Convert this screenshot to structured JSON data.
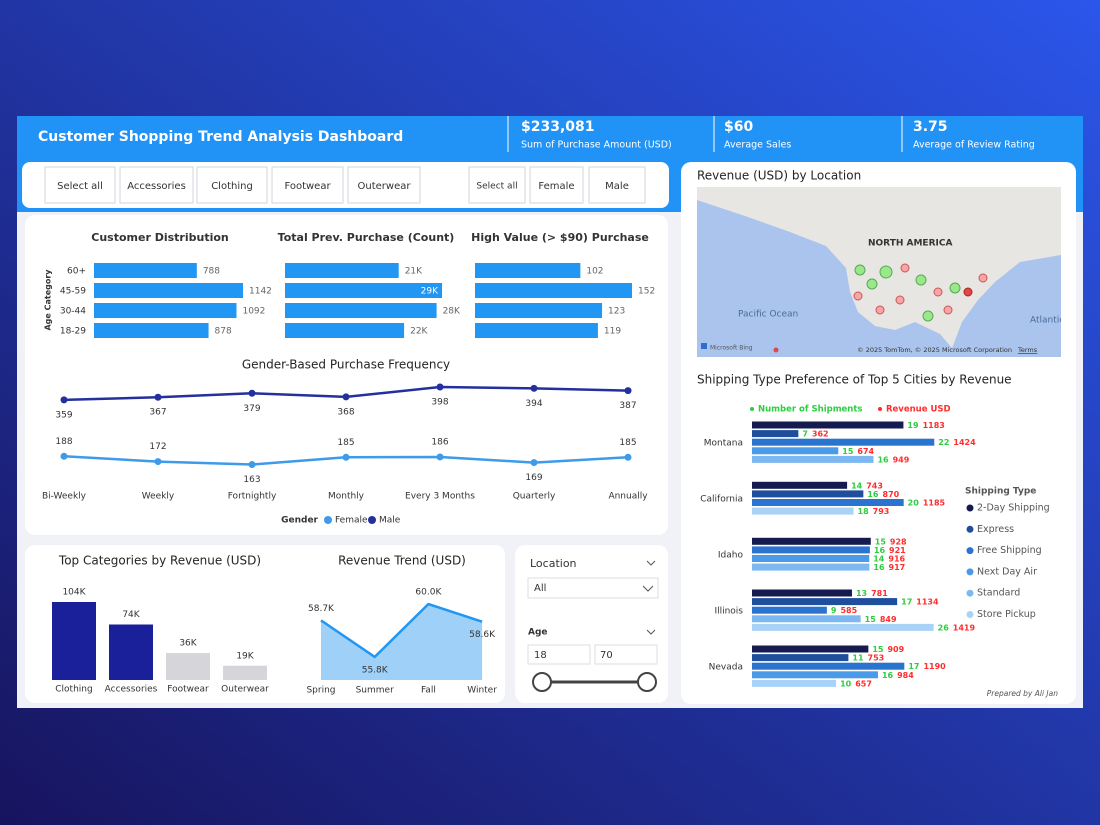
{
  "header": {
    "title": "Customer Shopping Trend Analysis Dashboard"
  },
  "kpis": [
    {
      "value": "$233,081",
      "label": "Sum of Purchase Amount (USD)"
    },
    {
      "value": "$60",
      "label": "Average Sales"
    },
    {
      "value": "3.75",
      "label": "Average of Review Rating"
    }
  ],
  "slicers": {
    "category": [
      "Select all",
      "Accessories",
      "Clothing",
      "Footwear",
      "Outerwear"
    ],
    "gender": [
      "Select all",
      "Female",
      "Male"
    ]
  },
  "customer_distribution": {
    "type": "bar",
    "title": "Customer Distribution",
    "y_label": "Age Category",
    "categories": [
      "60+",
      "45-59",
      "30-44",
      "18-29"
    ],
    "values": [
      788,
      1142,
      1092,
      878
    ],
    "color": "#2196f3"
  },
  "prev_purchase": {
    "type": "bar",
    "title": "Total Prev. Purchase (Count)",
    "values": [
      21000,
      29000,
      28000,
      22000
    ],
    "value_labels": [
      "21K",
      "29K",
      "28K",
      "22K"
    ],
    "color": "#2196f3"
  },
  "high_value": {
    "type": "bar",
    "title": "High Value (> $90) Purchase",
    "values": [
      102,
      152,
      123,
      119
    ],
    "color": "#2196f3"
  },
  "gender_frequency": {
    "type": "line",
    "title": "Gender-Based Purchase Frequency",
    "categories": [
      "Bi-Weekly",
      "Weekly",
      "Fortnightly",
      "Monthly",
      "Every 3 Months",
      "Quarterly",
      "Annually"
    ],
    "legend_title": "Gender",
    "series": [
      {
        "name": "Female",
        "color": "#3d9be9",
        "values": [
          188,
          172,
          163,
          185,
          186,
          169,
          185
        ]
      },
      {
        "name": "Male",
        "color": "#23309e",
        "values": [
          359,
          367,
          379,
          368,
          398,
          394,
          387
        ]
      }
    ]
  },
  "top_categories": {
    "type": "bar",
    "title": "Top Categories by Revenue (USD)",
    "categories": [
      "Clothing",
      "Accessories",
      "Footwear",
      "Outerwear"
    ],
    "values": [
      104000,
      74000,
      36000,
      19000
    ],
    "value_labels": [
      "104K",
      "74K",
      "36K",
      "19K"
    ],
    "colors": [
      "#1a1f9a",
      "#1a1f9a",
      "#d6d6da",
      "#d6d6da"
    ]
  },
  "revenue_trend": {
    "type": "area",
    "title": "Revenue Trend (USD)",
    "categories": [
      "Spring",
      "Summer",
      "Fall",
      "Winter"
    ],
    "values": [
      58700,
      55800,
      60000,
      58600
    ],
    "value_labels": [
      "58.7K",
      "55.8K",
      "60.0K",
      "58.6K"
    ],
    "color": "#2196f3"
  },
  "filters": {
    "location": {
      "label": "Location",
      "selected": "All"
    },
    "age": {
      "label": "Age",
      "min": 18,
      "max": 70
    }
  },
  "map": {
    "title": "Revenue (USD) by Location",
    "labels": [
      "NORTH AMERICA",
      "Pacific Ocean",
      "Atlantic Ocean"
    ],
    "provider": "Microsoft Bing",
    "attribution": "© 2025 TomTom, © 2025 Microsoft Corporation",
    "terms": "Terms"
  },
  "shipping": {
    "type": "bar",
    "title": "Shipping Type Preference of Top 5 Cities by Revenue",
    "measures": [
      {
        "name": "Number of Shipments",
        "color": "#2ecc40"
      },
      {
        "name": "Revenue USD",
        "color": "#ff2d2d"
      }
    ],
    "legend_title": "Shipping Type",
    "categories": [
      "Montana",
      "California",
      "Idaho",
      "Illinois",
      "Nevada"
    ],
    "series": [
      {
        "name": "2-Day Shipping",
        "color": "#161b4f",
        "shipments": [
          19,
          14,
          15,
          13,
          15
        ],
        "revenue": [
          1183,
          743,
          928,
          781,
          909
        ]
      },
      {
        "name": "Express",
        "color": "#1f4e9c",
        "shipments": [
          7,
          16,
          null,
          17,
          11
        ],
        "revenue": [
          362,
          870,
          null,
          1134,
          753
        ]
      },
      {
        "name": "Free Shipping",
        "color": "#2a74d0",
        "shipments": [
          22,
          20,
          16,
          9,
          17
        ],
        "revenue": [
          1424,
          1185,
          921,
          585,
          1190
        ]
      },
      {
        "name": "Next Day Air",
        "color": "#4a9ae8",
        "shipments": [
          15,
          null,
          14,
          null,
          16
        ],
        "revenue": [
          674,
          null,
          916,
          null,
          984
        ]
      },
      {
        "name": "Standard",
        "color": "#7db8f0",
        "shipments": [
          16,
          null,
          16,
          15,
          null
        ],
        "revenue": [
          949,
          null,
          917,
          849,
          null
        ]
      },
      {
        "name": "Store Pickup",
        "color": "#a9d2f7",
        "shipments": [
          null,
          18,
          null,
          26,
          10
        ],
        "revenue": [
          null,
          793,
          null,
          1419,
          657
        ]
      }
    ]
  },
  "footer": {
    "credit": "Prepared by Ali Jan"
  }
}
